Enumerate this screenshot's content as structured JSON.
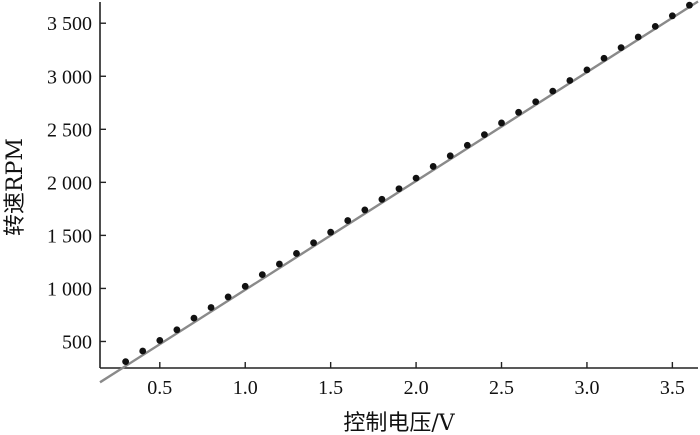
{
  "chart_data": {
    "type": "line",
    "xlabel": "控制电压/V",
    "ylabel": "转速RPM",
    "xlim": [
      0.15,
      3.65
    ],
    "ylim": [
      250,
      3700
    ],
    "x_ticks": [
      0.5,
      1.0,
      1.5,
      2.0,
      2.5,
      3.0,
      3.5
    ],
    "x_tick_labels": [
      "0.5",
      "1.0",
      "1.5",
      "2.0",
      "2.5",
      "3.0",
      "3.5"
    ],
    "y_ticks": [
      500,
      1000,
      1500,
      2000,
      2500,
      3000,
      3500
    ],
    "y_tick_labels": [
      "500",
      "1 000",
      "1 500",
      "2 000",
      "2 500",
      "3 000",
      "3 500"
    ],
    "grid": false,
    "fit_line": {
      "x": [
        0.15,
        3.65
      ],
      "y": [
        115,
        3705
      ],
      "color": "#8a8a8a"
    },
    "series": [
      {
        "marker_color": "#111111",
        "x": [
          0.3,
          0.4,
          0.5,
          0.6,
          0.7,
          0.8,
          0.9,
          1.0,
          1.1,
          1.2,
          1.3,
          1.4,
          1.5,
          1.6,
          1.7,
          1.8,
          1.9,
          2.0,
          2.1,
          2.2,
          2.3,
          2.4,
          2.5,
          2.6,
          2.7,
          2.8,
          2.9,
          3.0,
          3.1,
          3.2,
          3.3,
          3.4,
          3.5,
          3.6
        ],
        "y": [
          310,
          410,
          510,
          610,
          720,
          820,
          920,
          1020,
          1130,
          1230,
          1330,
          1430,
          1530,
          1640,
          1740,
          1840,
          1940,
          2040,
          2150,
          2250,
          2350,
          2450,
          2560,
          2660,
          2760,
          2860,
          2960,
          3060,
          3170,
          3270,
          3370,
          3470,
          3570,
          3670
        ]
      }
    ]
  }
}
